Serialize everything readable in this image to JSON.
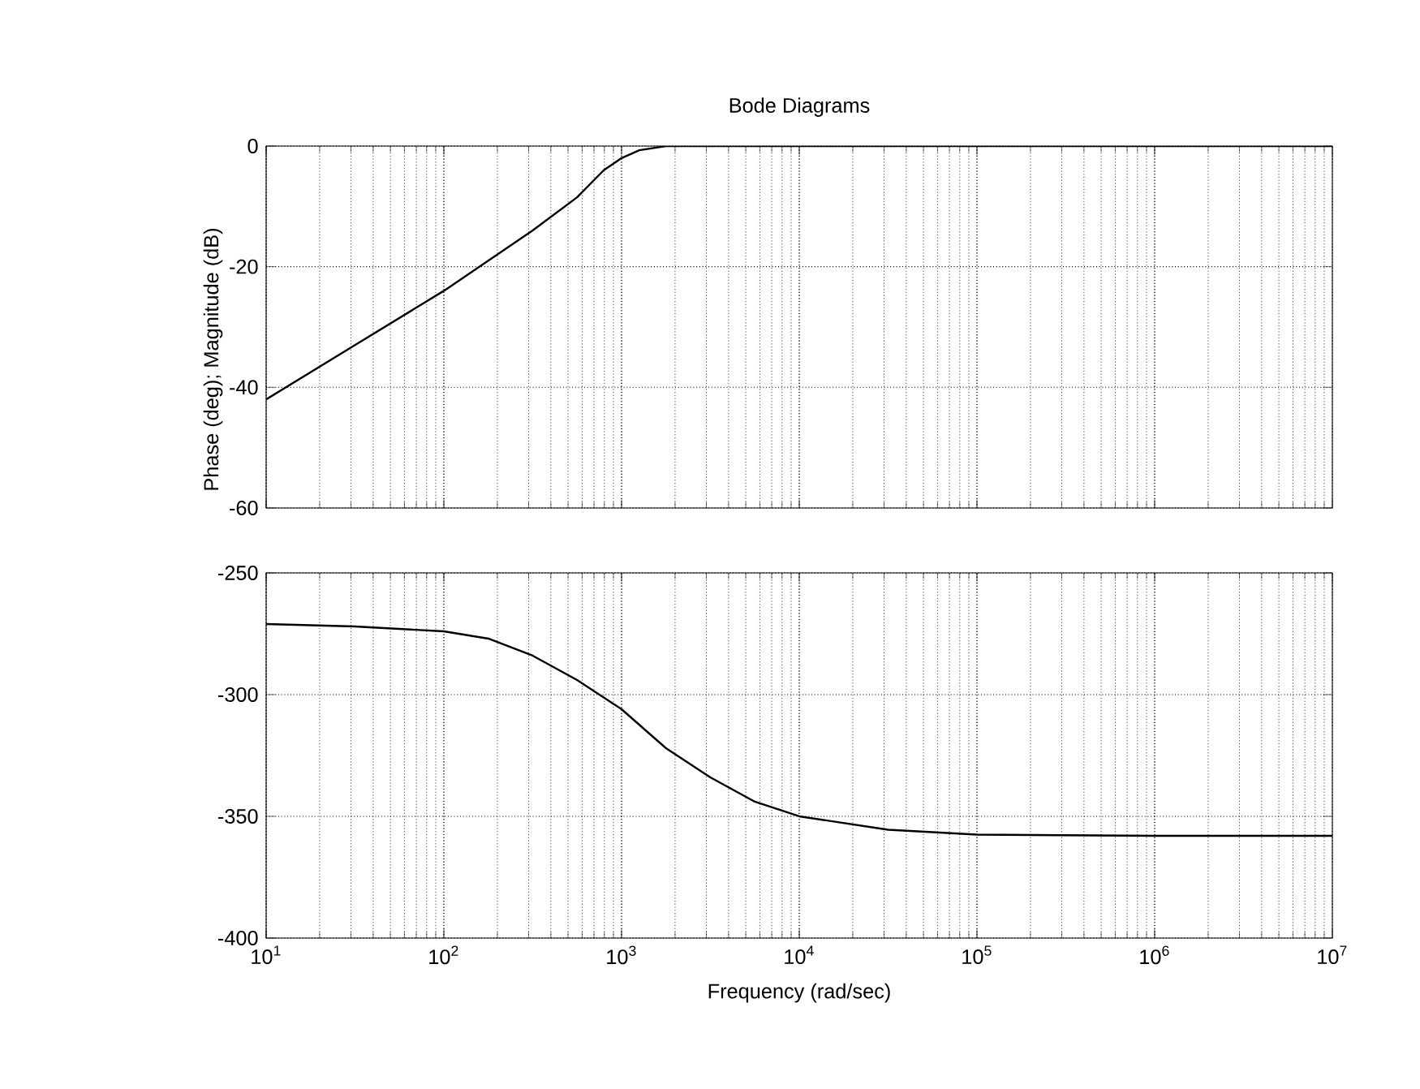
{
  "chart_data": [
    {
      "type": "line",
      "title": "Bode Diagrams",
      "ylabel": "Phase (deg); Magnitude (dB)",
      "log": "x",
      "grid": true,
      "tick_labels": "y",
      "xlim": [
        10,
        10000000
      ],
      "ylim": [
        -60,
        0
      ],
      "yticks": [
        -60,
        -40,
        -20,
        0
      ],
      "x": [
        10,
        31.6,
        100,
        316,
        562,
        794,
        1000,
        1259,
        1778,
        10000,
        10000000
      ],
      "series": [
        {
          "color": "#000000",
          "values": [
            -42,
            -33,
            -24,
            -14,
            -8.5,
            -4,
            -2,
            -0.7,
            0,
            0,
            0
          ]
        }
      ]
    },
    {
      "type": "line",
      "xlabel": "Frequency (rad/sec)",
      "log": "x",
      "grid": true,
      "xlim": [
        10,
        10000000
      ],
      "ylim": [
        -400,
        -250
      ],
      "yticks": [
        -400,
        -350,
        -300,
        -250
      ],
      "xticks": [
        {
          "value": 10,
          "label": "10$^{1}$"
        },
        {
          "value": 100,
          "label": "10$^{2}$"
        },
        {
          "value": 1000,
          "label": "10$^{3}$"
        },
        {
          "value": 10000,
          "label": "10$^{4}$"
        },
        {
          "value": 100000,
          "label": "10$^{5}$"
        },
        {
          "value": 1000000,
          "label": "10$^{6}$"
        },
        {
          "value": 10000000,
          "label": "10$^{7}$"
        }
      ],
      "x": [
        10,
        31.6,
        100,
        178,
        316,
        562,
        1000,
        1778,
        3162,
        5623,
        10000,
        31623,
        100000,
        1000000,
        10000000
      ],
      "series": [
        {
          "color": "#000000",
          "values": [
            -271,
            -272,
            -274,
            -277,
            -284,
            -294,
            -306,
            -322,
            -334,
            -344,
            -350,
            -355.5,
            -357.5,
            -358,
            -358
          ]
        }
      ]
    }
  ]
}
